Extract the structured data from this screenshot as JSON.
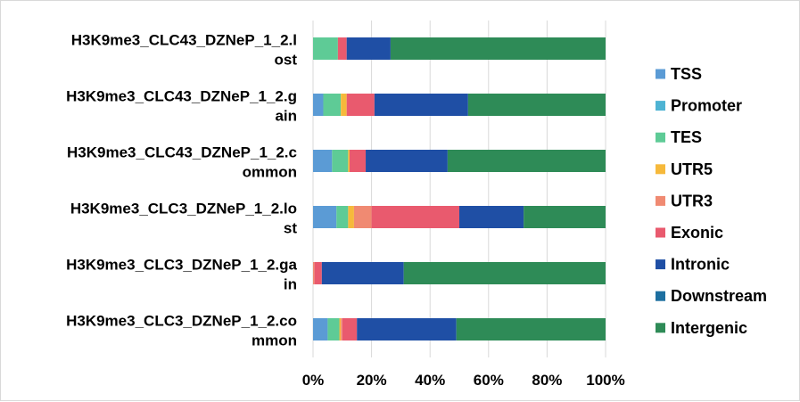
{
  "chart_data": {
    "type": "bar",
    "orientation": "horizontal",
    "stacked": "percent",
    "categories": [
      [
        "H3K9me3_CLC43_DZNeP_1_2.l",
        "ost"
      ],
      [
        "H3K9me3_CLC43_DZNeP_1_2.g",
        "ain"
      ],
      [
        "H3K9me3_CLC43_DZNeP_1_2.c",
        "ommon"
      ],
      [
        "H3K9me3_CLC3_DZNeP_1_2.lo",
        "st"
      ],
      [
        "H3K9me3_CLC3_DZNeP_1_2.ga",
        "in"
      ],
      [
        "H3K9me3_CLC3_DZNeP_1_2.co",
        "mmon"
      ]
    ],
    "x_ticks": [
      "0%",
      "20%",
      "40%",
      "60%",
      "80%",
      "100%"
    ],
    "xlim": [
      0,
      100
    ],
    "legend_position": "right",
    "grid": "vertical",
    "series": [
      {
        "name": "TSS",
        "color": "#5B9BD5",
        "values": [
          0,
          3.5,
          6.5,
          8,
          0,
          5
        ]
      },
      {
        "name": "Promoter",
        "color": "#4EB3D3",
        "values": [
          0,
          0,
          0,
          0,
          0,
          0
        ]
      },
      {
        "name": "TES",
        "color": "#5ECB96",
        "values": [
          8.5,
          6,
          5.5,
          4,
          0,
          4
        ]
      },
      {
        "name": "UTR5",
        "color": "#F6B93B",
        "values": [
          0,
          2,
          0.5,
          2,
          0,
          0.5
        ]
      },
      {
        "name": "UTR3",
        "color": "#F08A72",
        "values": [
          0,
          0,
          0,
          6,
          0.5,
          0.5
        ]
      },
      {
        "name": "Exonic",
        "color": "#E95A6E",
        "values": [
          3,
          9.5,
          5.5,
          30,
          2.5,
          5
        ]
      },
      {
        "name": "Intronic",
        "color": "#1F4FA5",
        "values": [
          15,
          32,
          28,
          22,
          28,
          34
        ]
      },
      {
        "name": "Downstream",
        "color": "#1D6FA0",
        "values": [
          0,
          0,
          0,
          0,
          0,
          0
        ]
      },
      {
        "name": "Intergenic",
        "color": "#2E8B57",
        "values": [
          73.5,
          47,
          54,
          28,
          69,
          51
        ]
      }
    ]
  }
}
